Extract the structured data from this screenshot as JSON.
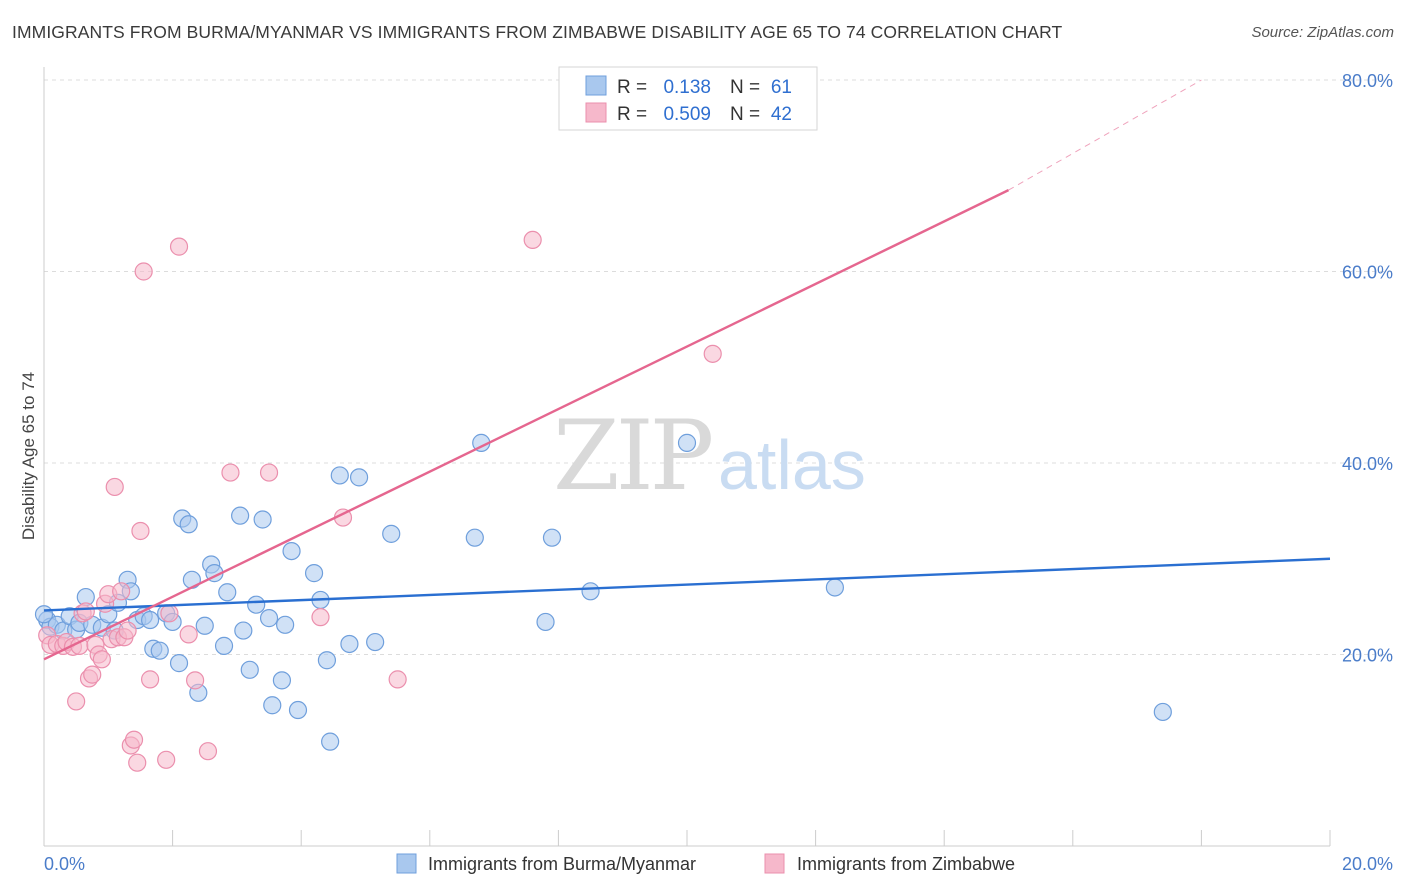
{
  "title": "IMMIGRANTS FROM BURMA/MYANMAR VS IMMIGRANTS FROM ZIMBABWE DISABILITY AGE 65 TO 74 CORRELATION CHART",
  "source": "Source: ZipAtlas.com",
  "watermark": {
    "zip": "ZIP",
    "atlas": "atlas"
  },
  "legend": {
    "rows": [
      {
        "r_label": "R =",
        "r_value": "0.138",
        "n_label": "N =",
        "n_value": "61"
      },
      {
        "r_label": "R =",
        "r_value": "0.509",
        "n_label": "N =",
        "n_value": "42"
      }
    ]
  },
  "colors": {
    "blue_fill": "#a9c8ee",
    "blue_stroke": "#6f9fdc",
    "blue_line": "#2a6fd1",
    "pink_fill": "#f6b8cb",
    "pink_stroke": "#eb8fad",
    "pink_line": "#e5668f",
    "grid": "#dcdcdc",
    "tick_text": "#4a7cc9"
  },
  "chart_data": {
    "type": "scatter",
    "ylabel": "Disability Age 65 to 74",
    "xlim": [
      0,
      20
    ],
    "ylim": [
      0,
      80
    ],
    "x_tick_labels": [
      {
        "value": 0,
        "label": "0.0%"
      },
      {
        "value": 20,
        "label": "20.0%"
      }
    ],
    "y_tick_labels": [
      {
        "value": 20,
        "label": "20.0%"
      },
      {
        "value": 40,
        "label": "40.0%"
      },
      {
        "value": 60,
        "label": "60.0%"
      },
      {
        "value": 80,
        "label": "80.0%"
      }
    ],
    "series": [
      {
        "name": "Immigrants from Burma/Myanmar",
        "color": "blue",
        "trend": {
          "x0": 0,
          "y0": 24.6,
          "x1": 20,
          "y1": 30.0
        },
        "points": [
          [
            0.05,
            23.6
          ],
          [
            0.1,
            22.9
          ],
          [
            0.2,
            23.1
          ],
          [
            0.3,
            22.5
          ],
          [
            0.4,
            24.0
          ],
          [
            0.5,
            22.6
          ],
          [
            0.55,
            23.3
          ],
          [
            0.65,
            26.0
          ],
          [
            0.75,
            23.1
          ],
          [
            0.9,
            22.8
          ],
          [
            1.0,
            24.2
          ],
          [
            1.1,
            22.5
          ],
          [
            1.15,
            25.4
          ],
          [
            1.3,
            27.8
          ],
          [
            1.35,
            26.6
          ],
          [
            1.45,
            23.6
          ],
          [
            1.55,
            24.0
          ],
          [
            1.65,
            23.6
          ],
          [
            1.7,
            20.6
          ],
          [
            1.8,
            20.4
          ],
          [
            1.9,
            24.3
          ],
          [
            2.0,
            23.4
          ],
          [
            2.1,
            19.1
          ],
          [
            2.15,
            34.2
          ],
          [
            2.25,
            33.6
          ],
          [
            2.3,
            27.8
          ],
          [
            2.4,
            16.0
          ],
          [
            2.5,
            23.0
          ],
          [
            2.6,
            29.4
          ],
          [
            2.65,
            28.5
          ],
          [
            2.8,
            20.9
          ],
          [
            2.85,
            26.5
          ],
          [
            3.05,
            34.5
          ],
          [
            3.1,
            22.5
          ],
          [
            3.2,
            18.4
          ],
          [
            3.3,
            25.2
          ],
          [
            3.4,
            34.1
          ],
          [
            3.5,
            23.8
          ],
          [
            3.55,
            14.7
          ],
          [
            3.7,
            17.3
          ],
          [
            3.75,
            23.1
          ],
          [
            3.85,
            30.8
          ],
          [
            3.95,
            14.2
          ],
          [
            4.2,
            28.5
          ],
          [
            4.3,
            25.7
          ],
          [
            4.4,
            19.4
          ],
          [
            4.45,
            10.9
          ],
          [
            4.6,
            38.7
          ],
          [
            4.75,
            21.1
          ],
          [
            4.9,
            38.5
          ],
          [
            5.15,
            21.3
          ],
          [
            5.4,
            32.6
          ],
          [
            6.7,
            32.2
          ],
          [
            6.8,
            42.1
          ],
          [
            7.8,
            23.4
          ],
          [
            7.9,
            32.2
          ],
          [
            8.5,
            26.6
          ],
          [
            10.0,
            42.1
          ],
          [
            12.3,
            27.0
          ],
          [
            17.4,
            14.0
          ],
          [
            0.0,
            24.2
          ]
        ]
      },
      {
        "name": "Immigrants from Zimbabwe",
        "color": "pink",
        "trend": {
          "x0": 0,
          "y0": 19.5,
          "x1": 15.0,
          "y1": 68.5,
          "dash_x1": 18.0,
          "dash_y1": 80.0
        },
        "points": [
          [
            0.05,
            22.0
          ],
          [
            0.1,
            21.0
          ],
          [
            0.2,
            21.1
          ],
          [
            0.3,
            20.9
          ],
          [
            0.35,
            21.3
          ],
          [
            0.45,
            20.8
          ],
          [
            0.5,
            15.1
          ],
          [
            0.55,
            20.9
          ],
          [
            0.6,
            24.3
          ],
          [
            0.65,
            24.5
          ],
          [
            0.7,
            17.5
          ],
          [
            0.75,
            17.9
          ],
          [
            0.8,
            21.0
          ],
          [
            0.85,
            20.0
          ],
          [
            0.9,
            19.5
          ],
          [
            0.95,
            25.3
          ],
          [
            1.0,
            26.3
          ],
          [
            1.05,
            21.6
          ],
          [
            1.1,
            37.5
          ],
          [
            1.15,
            21.8
          ],
          [
            1.2,
            26.6
          ],
          [
            1.25,
            21.8
          ],
          [
            1.3,
            22.5
          ],
          [
            1.35,
            10.5
          ],
          [
            1.4,
            11.1
          ],
          [
            1.45,
            8.7
          ],
          [
            1.5,
            32.9
          ],
          [
            1.55,
            60.0
          ],
          [
            1.65,
            17.4
          ],
          [
            1.9,
            9.0
          ],
          [
            1.95,
            24.3
          ],
          [
            2.1,
            62.6
          ],
          [
            2.25,
            22.1
          ],
          [
            2.35,
            17.3
          ],
          [
            2.55,
            9.9
          ],
          [
            2.9,
            39.0
          ],
          [
            3.5,
            39.0
          ],
          [
            4.3,
            23.9
          ],
          [
            4.65,
            34.3
          ],
          [
            5.5,
            17.4
          ],
          [
            7.6,
            63.3
          ],
          [
            10.4,
            51.4
          ]
        ]
      }
    ]
  },
  "bottom_legend": [
    {
      "label": "Immigrants from Burma/Myanmar"
    },
    {
      "label": "Immigrants from Zimbabwe"
    }
  ]
}
